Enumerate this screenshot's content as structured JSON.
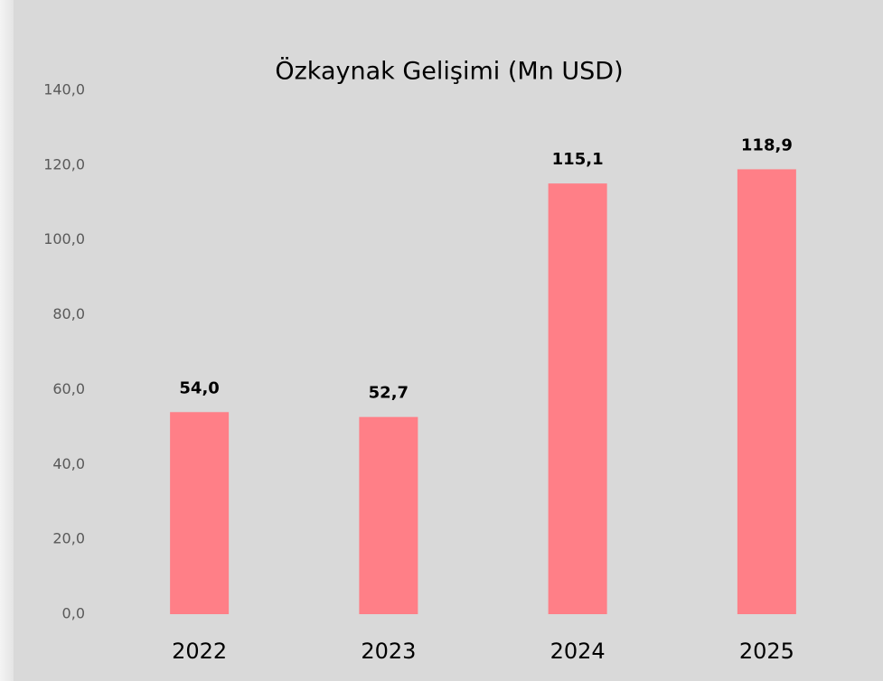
{
  "chart_data": {
    "type": "bar",
    "title": "Özkaynak Gelişimi (Mn USD)",
    "categories": [
      "2022",
      "2023",
      "2024",
      "2025"
    ],
    "values": [
      54.0,
      52.7,
      115.1,
      118.9
    ],
    "value_labels": [
      "54,0",
      "52,7",
      "115,1",
      "118,9"
    ],
    "color": "#ff7f87",
    "ylim": [
      0,
      140
    ],
    "yticks": [
      {
        "value": 0,
        "label": "0,0"
      },
      {
        "value": 20,
        "label": "20,0"
      },
      {
        "value": 40,
        "label": "40,0"
      },
      {
        "value": 60,
        "label": "60,0"
      },
      {
        "value": 80,
        "label": "80,0"
      },
      {
        "value": 100,
        "label": "100,0"
      },
      {
        "value": 120,
        "label": "120,0"
      },
      {
        "value": 140,
        "label": "140,0"
      }
    ],
    "grid": false
  }
}
